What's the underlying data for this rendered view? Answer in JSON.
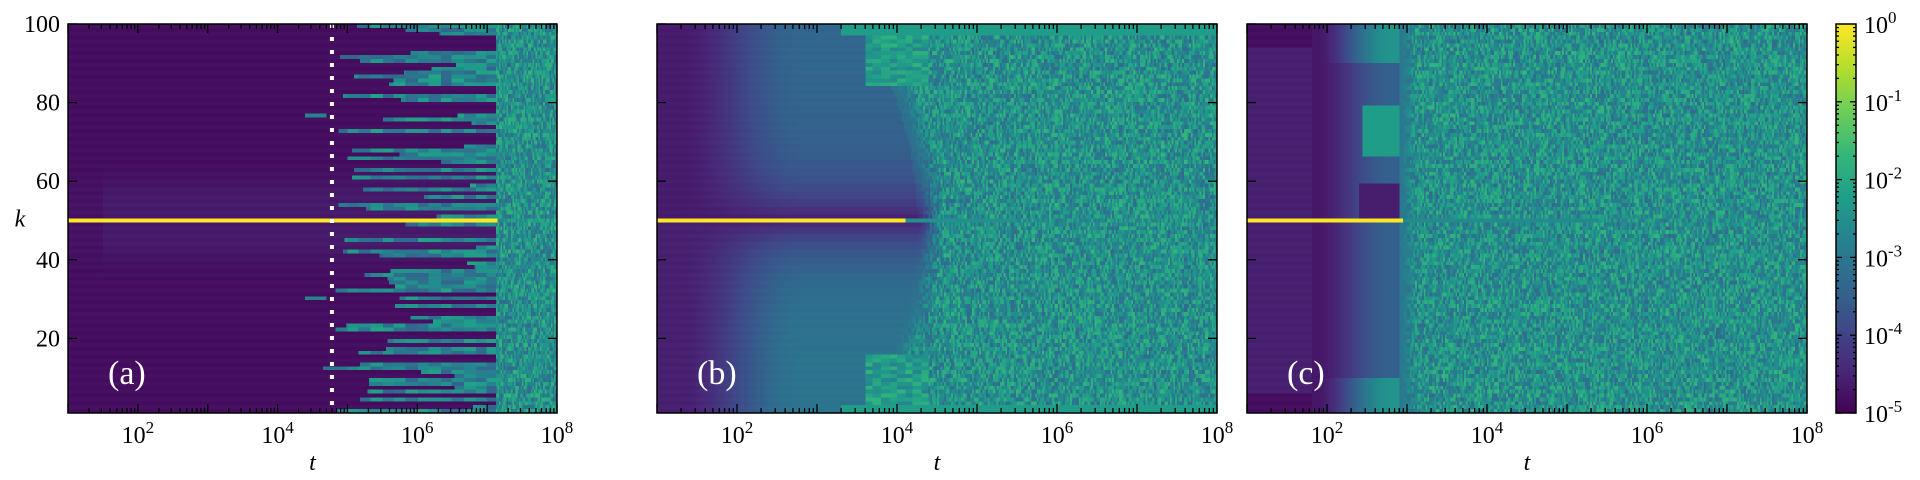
{
  "colors": {
    "viridis": [
      "#440154",
      "#482878",
      "#3e4a89",
      "#31688e",
      "#26828e",
      "#1f9e89",
      "#35b779",
      "#6ece58",
      "#b5de2b",
      "#fde725"
    ],
    "dotted_line": "#ffffff",
    "panel_label": "#ffffff"
  },
  "axes": {
    "xlabel": "t",
    "ylabel": "k",
    "x_log_range": [
      1,
      8
    ],
    "y_range": [
      1,
      100
    ],
    "x_ticks": [
      {
        "base": "10",
        "exp": "2",
        "value": 100
      },
      {
        "base": "10",
        "exp": "4",
        "value": 10000
      },
      {
        "base": "10",
        "exp": "6",
        "value": 1000000
      },
      {
        "base": "10",
        "exp": "8",
        "value": 100000000
      }
    ],
    "y_ticks": [
      {
        "label": "20",
        "value": 20
      },
      {
        "label": "40",
        "value": 40
      },
      {
        "label": "60",
        "value": 60
      },
      {
        "label": "80",
        "value": 80
      },
      {
        "label": "100",
        "value": 100
      }
    ]
  },
  "colorbar": {
    "scale": "log",
    "range": [
      1e-05,
      1
    ],
    "ticks": [
      {
        "base": "10",
        "exp": "0",
        "value": 1
      },
      {
        "base": "10",
        "exp": "-1",
        "value": 0.1
      },
      {
        "base": "10",
        "exp": "-2",
        "value": 0.01
      },
      {
        "base": "10",
        "exp": "-3",
        "value": 0.001
      },
      {
        "base": "10",
        "exp": "-4",
        "value": 0.0001
      },
      {
        "base": "10",
        "exp": "-5",
        "value": 1e-05
      }
    ]
  },
  "chart_data": [
    {
      "type": "heatmap",
      "panel_label": "(a)",
      "xlabel": "t",
      "ylabel": "k",
      "x_scale": "log",
      "xlim": [
        10,
        100000000
      ],
      "ylim": [
        1,
        100
      ],
      "initial_mode_k": 50,
      "dotted_vertical_line_t": 60000,
      "thermalization_t": 15000000
    },
    {
      "type": "heatmap",
      "panel_label": "(b)",
      "xlabel": "t",
      "x_scale": "log",
      "xlim": [
        10,
        100000000
      ],
      "ylim": [
        1,
        100
      ],
      "initial_mode_k": 50,
      "spreading_onset_t": 10000
    },
    {
      "type": "heatmap",
      "panel_label": "(c)",
      "xlabel": "t",
      "x_scale": "log",
      "xlim": [
        10,
        100000000
      ],
      "ylim": [
        1,
        100
      ],
      "initial_mode_k": 50,
      "spreading_onset_t": 1000
    }
  ]
}
